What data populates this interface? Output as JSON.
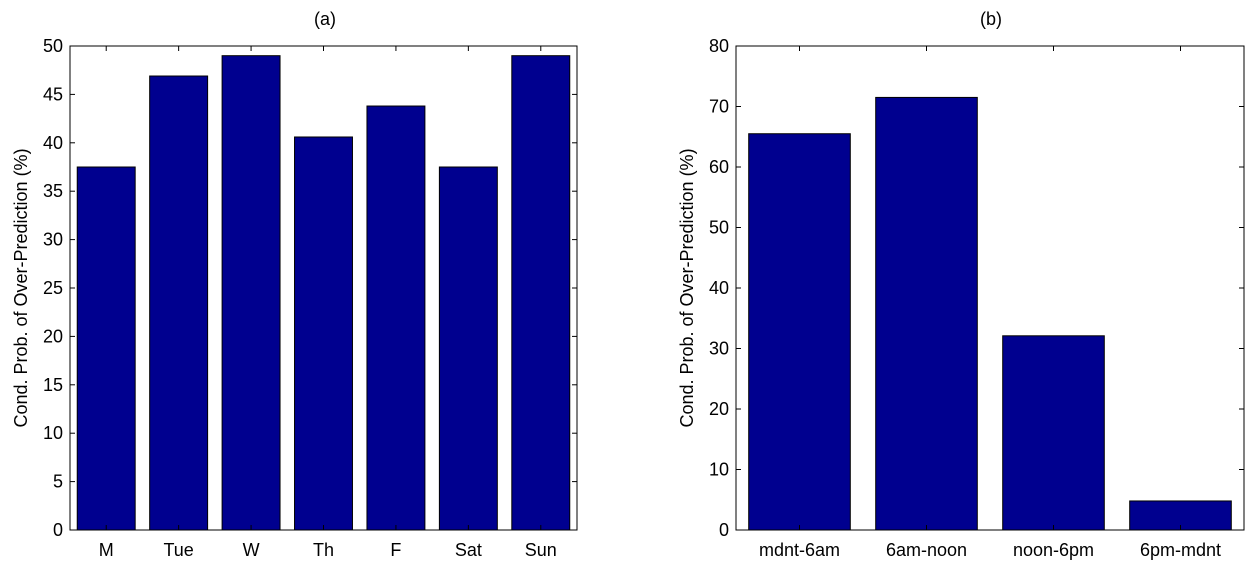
{
  "chart_data": [
    {
      "type": "bar",
      "title": "(a)",
      "xlabel": "",
      "ylabel": "Cond. Prob. of Over-Prediction (%)",
      "categories": [
        "M",
        "Tue",
        "W",
        "Th",
        "F",
        "Sat",
        "Sun"
      ],
      "values": [
        37.5,
        46.9,
        49.0,
        40.6,
        43.8,
        37.5,
        49.0
      ],
      "ylim": [
        0,
        50
      ],
      "yticks": [
        0,
        5,
        10,
        15,
        20,
        25,
        30,
        35,
        40,
        45,
        50
      ],
      "bar_color": "#00008f",
      "grid": false,
      "legend": "none"
    },
    {
      "type": "bar",
      "title": "(b)",
      "xlabel": "",
      "ylabel": "Cond. Prob. of Over-Prediction (%)",
      "categories": [
        "mdnt-6am",
        "6am-noon",
        "noon-6pm",
        "6pm-mdnt"
      ],
      "values": [
        65.5,
        71.5,
        32.1,
        4.8
      ],
      "ylim": [
        0,
        80
      ],
      "yticks": [
        0,
        10,
        20,
        30,
        40,
        50,
        60,
        70,
        80
      ],
      "bar_color": "#00008f",
      "grid": false,
      "legend": "none"
    }
  ]
}
